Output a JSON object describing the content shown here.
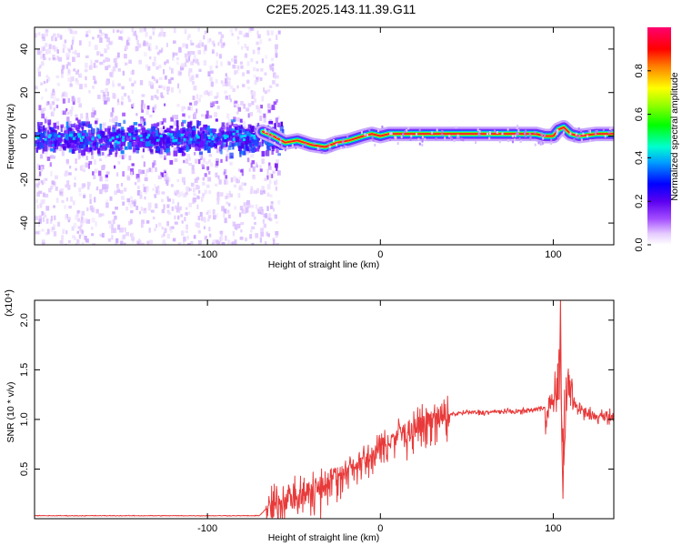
{
  "title": "C2E5.2025.143.11.39.G11",
  "chart_data": [
    {
      "type": "heatmap",
      "xlabel": "Height of straight line (km)",
      "ylabel": "Frequency (Hz)",
      "xlim": [
        -200,
        135
      ],
      "ylim": [
        -50,
        50
      ],
      "xticks": [
        -100,
        0,
        100
      ],
      "yticks": [
        -40,
        -20,
        0,
        20,
        40
      ],
      "colorbar": {
        "label": "Normalized spectral amplitude",
        "range": [
          0,
          1
        ],
        "ticks": [
          0.0,
          0.2,
          0.4,
          0.6,
          0.8
        ],
        "tick_labels": [
          "0.0",
          "0.2",
          "0.4",
          "0.6",
          "0.8"
        ],
        "colormap": "rainbow"
      },
      "ridge": {
        "x": [
          -68,
          -62,
          -55,
          -48,
          -40,
          -32,
          -25,
          -18,
          -10,
          -5,
          0,
          5,
          10,
          20,
          40,
          60,
          80,
          90,
          95,
          100,
          103,
          106,
          110,
          115,
          125,
          135
        ],
        "frequency": [
          2,
          0,
          -3,
          -2,
          -4,
          -5,
          -3,
          -2,
          0,
          1,
          0,
          1,
          1,
          1,
          1,
          1,
          1,
          1,
          0,
          0,
          3,
          4,
          1,
          0,
          1,
          1
        ]
      },
      "noise_region_x": [
        -200,
        -65
      ],
      "grid": false
    },
    {
      "type": "line",
      "xlabel": "Height of straight line (km)",
      "ylabel": "SNR (10 * v/v)",
      "multiplier": "(x10⁴)",
      "xlim": [
        -200,
        135
      ],
      "ylim": [
        0,
        2.2
      ],
      "xticks": [
        -100,
        0,
        100
      ],
      "yticks": [
        0.5,
        1.0,
        1.5,
        2.0
      ],
      "ytick_labels": [
        "0.5",
        "1.0",
        "1.5",
        "2.0"
      ],
      "color": "#e83a3a",
      "envelope": {
        "x": [
          -200,
          -150,
          -100,
          -70,
          -65,
          -60,
          -50,
          -40,
          -30,
          -20,
          -10,
          0,
          10,
          20,
          30,
          40,
          50,
          60,
          70,
          80,
          90,
          95,
          100,
          102,
          104,
          106,
          108,
          110,
          115,
          120,
          125,
          130,
          135
        ],
        "y": [
          0.03,
          0.03,
          0.03,
          0.03,
          0.12,
          0.18,
          0.25,
          0.32,
          0.4,
          0.5,
          0.6,
          0.72,
          0.85,
          0.95,
          1.02,
          1.05,
          1.07,
          1.07,
          1.08,
          1.08,
          1.1,
          1.12,
          1.15,
          1.3,
          1.6,
          0.5,
          1.45,
          1.25,
          1.1,
          1.05,
          1.02,
          1.05,
          1.0
        ]
      },
      "grid": false
    }
  ]
}
